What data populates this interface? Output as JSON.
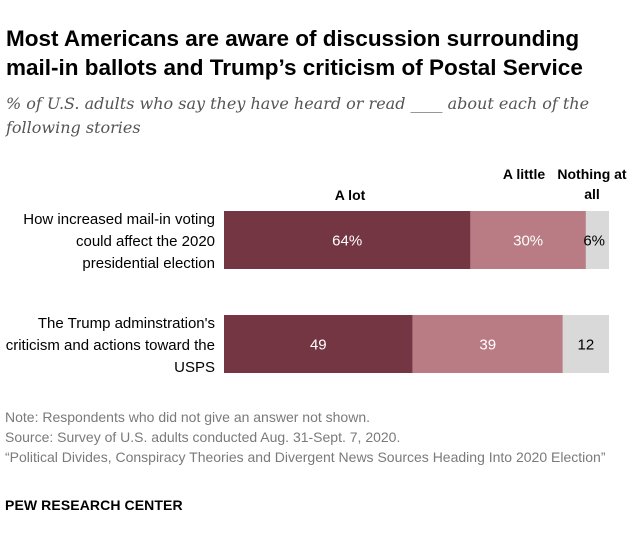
{
  "title": "Most Americans are aware of discussion surrounding mail-in ballots and Trump’s criticism of Postal Service",
  "subtitle": "% of U.S. adults who say they have heard or read ____ about each of the following stories",
  "legend": {
    "a_lot": "A lot",
    "a_little": "A little",
    "nothing": "Nothing at all"
  },
  "chart_data": {
    "type": "bar",
    "orientation": "horizontal",
    "stacked": true,
    "categories": [
      "How increased mail-in voting could affect the 2020 presidential election",
      "The Trump adminstration's criticism and actions toward the USPS"
    ],
    "series": [
      {
        "name": "A lot",
        "values": [
          64,
          49
        ],
        "labels": [
          "64%",
          "49"
        ],
        "color": "#743642"
      },
      {
        "name": "A little",
        "values": [
          30,
          39
        ],
        "labels": [
          "30%",
          "39"
        ],
        "color": "#b97b84"
      },
      {
        "name": "Nothing at all",
        "values": [
          6,
          12
        ],
        "labels": [
          "6%",
          "12"
        ],
        "color": "#d9d9d9"
      }
    ],
    "xlim": [
      0,
      100
    ],
    "label_colors": [
      "#ffffff",
      "#ffffff",
      "#000000"
    ]
  },
  "notes": {
    "note": "Note: Respondents who did not give an answer not shown.",
    "source": "Source: Survey of U.S. adults conducted Aug. 31-Sept. 7, 2020.",
    "report": "“Political Divides, Conspiracy Theories and Divergent News Sources Heading Into 2020 Election”"
  },
  "brand": "PEW RESEARCH CENTER"
}
